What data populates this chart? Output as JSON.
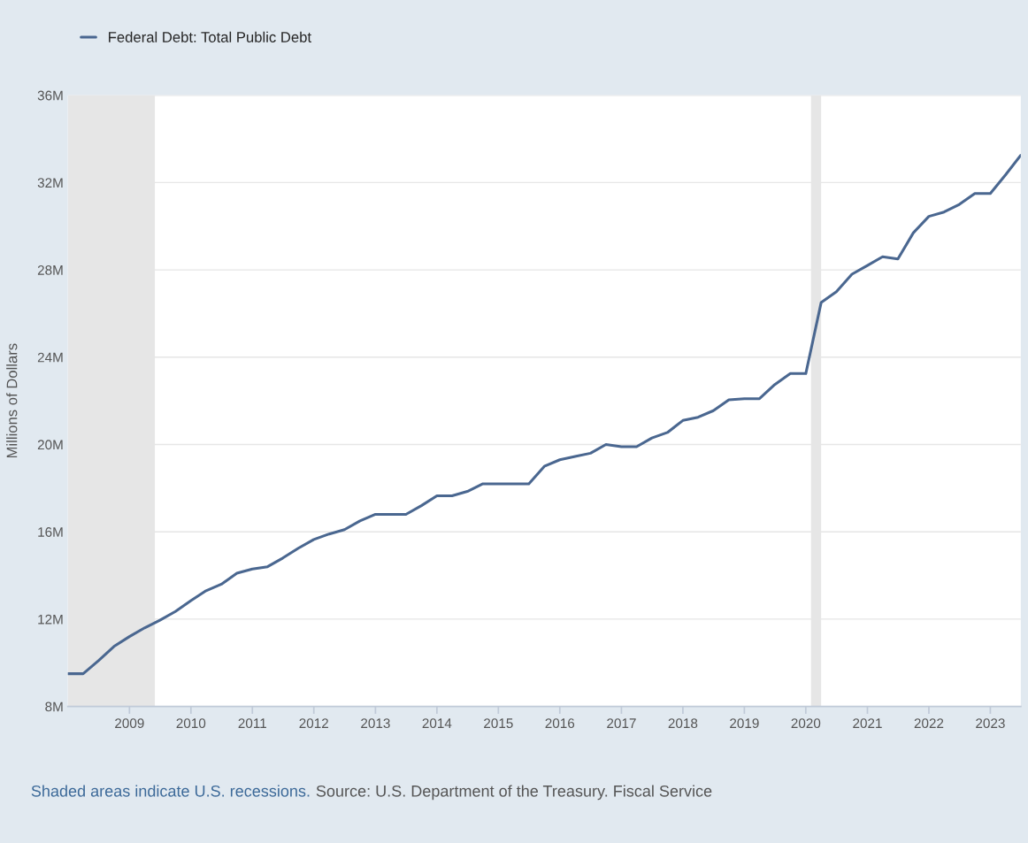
{
  "chart_data": {
    "type": "line",
    "ylabel": "Millions of Dollars",
    "x": [
      "2008-01",
      "2008-04",
      "2008-07",
      "2008-10",
      "2009-01",
      "2009-04",
      "2009-07",
      "2009-10",
      "2010-01",
      "2010-04",
      "2010-07",
      "2010-10",
      "2011-01",
      "2011-04",
      "2011-07",
      "2011-10",
      "2012-01",
      "2012-04",
      "2012-07",
      "2012-10",
      "2013-01",
      "2013-04",
      "2013-07",
      "2013-10",
      "2014-01",
      "2014-04",
      "2014-07",
      "2014-10",
      "2015-01",
      "2015-04",
      "2015-07",
      "2015-10",
      "2016-01",
      "2016-04",
      "2016-07",
      "2016-10",
      "2017-01",
      "2017-04",
      "2017-07",
      "2017-10",
      "2018-01",
      "2018-04",
      "2018-07",
      "2018-10",
      "2019-01",
      "2019-04",
      "2019-07",
      "2019-10",
      "2020-01",
      "2020-04",
      "2020-07",
      "2020-10",
      "2021-01",
      "2021-04",
      "2021-07",
      "2021-10",
      "2022-01",
      "2022-04",
      "2022-07",
      "2022-10",
      "2023-01",
      "2023-04",
      "2023-07"
    ],
    "series": [
      {
        "name": "Federal Debt: Total Public Debt",
        "color": "#4a6790",
        "values": [
          9.5,
          9.5,
          10.1,
          10.75,
          11.2,
          11.6,
          11.95,
          12.35,
          12.85,
          13.3,
          13.6,
          14.1,
          14.3,
          14.4,
          14.8,
          15.25,
          15.65,
          15.9,
          16.1,
          16.5,
          16.8,
          16.8,
          16.8,
          17.2,
          17.65,
          17.65,
          17.85,
          18.2,
          18.2,
          18.2,
          18.2,
          19.0,
          19.3,
          19.45,
          19.6,
          20.0,
          19.9,
          19.9,
          20.3,
          20.55,
          21.1,
          21.25,
          21.55,
          22.05,
          22.1,
          22.1,
          22.75,
          23.25,
          23.25,
          26.5,
          27.0,
          27.8,
          28.2,
          28.6,
          28.5,
          29.7,
          30.45,
          30.65,
          31.0,
          31.5,
          31.5,
          32.35,
          33.25
        ]
      }
    ],
    "xlim": [
      "2008-01",
      "2023-07"
    ],
    "xticks": [
      "2009",
      "2010",
      "2011",
      "2012",
      "2013",
      "2014",
      "2015",
      "2016",
      "2017",
      "2018",
      "2019",
      "2020",
      "2021",
      "2022",
      "2023"
    ],
    "ylim": [
      8,
      36
    ],
    "yticks": [
      {
        "value": 8,
        "label": "8M"
      },
      {
        "value": 12,
        "label": "12M"
      },
      {
        "value": 16,
        "label": "16M"
      },
      {
        "value": 20,
        "label": "20M"
      },
      {
        "value": 24,
        "label": "24M"
      },
      {
        "value": 28,
        "label": "28M"
      },
      {
        "value": 32,
        "label": "32M"
      },
      {
        "value": 36,
        "label": "36M"
      }
    ],
    "bands": [
      {
        "axis": "x",
        "from": "2008-01",
        "to": "2009-06",
        "color": "#e6e6e6"
      },
      {
        "axis": "x",
        "from": "2020-02",
        "to": "2020-04",
        "color": "#e6e6e6"
      }
    ],
    "annotations": [
      "Shaded areas indicate U.S. recessions.",
      "Source: U.S. Department of the Treasury. Fiscal Service"
    ],
    "grid": "y",
    "legend": "top left",
    "marker": "none",
    "line_style": "solid"
  }
}
